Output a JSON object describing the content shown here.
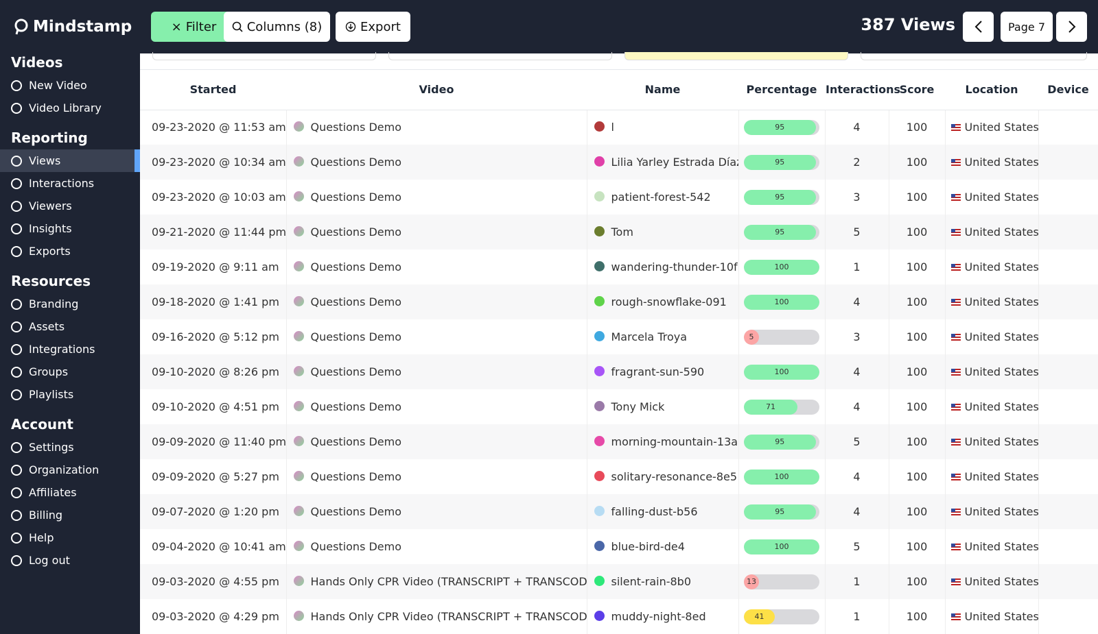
{
  "header": {
    "logo": "Mindstamp",
    "filter": "Filter",
    "columns": "Columns (8)",
    "export": "Export",
    "views_count": "387 Views",
    "page": "Page 7"
  },
  "sidebar": [
    {
      "title": "Videos",
      "items": [
        "New Video",
        "Video Library"
      ]
    },
    {
      "title": "Reporting",
      "items": [
        "Views",
        "Interactions",
        "Viewers",
        "Insights",
        "Exports"
      ]
    },
    {
      "title": "Resources",
      "items": [
        "Branding",
        "Assets",
        "Integrations",
        "Groups",
        "Playlists"
      ]
    },
    {
      "title": "Account",
      "items": [
        "Settings",
        "Organization",
        "Affiliates",
        "Billing",
        "Help",
        "Log out"
      ]
    }
  ],
  "active_item": "Views",
  "table": {
    "columns": [
      "Started",
      "Video",
      "Name",
      "Percentage",
      "Interactions",
      "Score",
      "Location",
      "Device"
    ],
    "rows": [
      {
        "started": "09-23-2020 @ 11:53 am",
        "video": "Questions Demo",
        "name": "l",
        "color": "#b23a3a",
        "percentage": 95,
        "bar_color": "#86efac",
        "interactions": 4,
        "score": 100,
        "location": "United States"
      },
      {
        "started": "09-23-2020 @ 10:34 am",
        "video": "Questions Demo",
        "name": "Lilia Yarley Estrada Díaz",
        "color": "#e040a8",
        "percentage": 95,
        "bar_color": "#86efac",
        "interactions": 2,
        "score": 100,
        "location": "United States"
      },
      {
        "started": "09-23-2020 @ 10:03 am",
        "video": "Questions Demo",
        "name": "patient-forest-542",
        "color": "#c7e3c0",
        "percentage": 95,
        "bar_color": "#86efac",
        "interactions": 3,
        "score": 100,
        "location": "United States"
      },
      {
        "started": "09-21-2020 @ 11:44 pm",
        "video": "Questions Demo",
        "name": "Tom",
        "color": "#6b7d2e",
        "percentage": 95,
        "bar_color": "#86efac",
        "interactions": 5,
        "score": 100,
        "location": "United States"
      },
      {
        "started": "09-19-2020 @ 9:11 am",
        "video": "Questions Demo",
        "name": "wandering-thunder-10f",
        "color": "#3f6f6a",
        "percentage": 100,
        "bar_color": "#86efac",
        "interactions": 1,
        "score": 100,
        "location": "United States"
      },
      {
        "started": "09-18-2020 @ 1:41 pm",
        "video": "Questions Demo",
        "name": "rough-snowflake-091",
        "color": "#5fd34a",
        "percentage": 100,
        "bar_color": "#86efac",
        "interactions": 4,
        "score": 100,
        "location": "United States"
      },
      {
        "started": "09-16-2020 @ 5:12 pm",
        "video": "Questions Demo",
        "name": "Marcela Troya",
        "color": "#3fa9e0",
        "percentage": 5,
        "bar_color": "#fca5a5",
        "interactions": 3,
        "score": 100,
        "location": "United States"
      },
      {
        "started": "09-10-2020 @ 8:26 pm",
        "video": "Questions Demo",
        "name": "fragrant-sun-590",
        "color": "#a855f7",
        "percentage": 100,
        "bar_color": "#86efac",
        "interactions": 4,
        "score": 100,
        "location": "United States"
      },
      {
        "started": "09-10-2020 @ 4:51 pm",
        "video": "Questions Demo",
        "name": "Tony Mick",
        "color": "#9a7aa8",
        "percentage": 71,
        "bar_color": "#86efac",
        "interactions": 4,
        "score": 100,
        "location": "United States"
      },
      {
        "started": "09-09-2020 @ 11:40 pm",
        "video": "Questions Demo",
        "name": "morning-mountain-13a",
        "color": "#e64aa8",
        "percentage": 95,
        "bar_color": "#86efac",
        "interactions": 5,
        "score": 100,
        "location": "United States"
      },
      {
        "started": "09-09-2020 @ 5:27 pm",
        "video": "Questions Demo",
        "name": "solitary-resonance-8e5",
        "color": "#e84a5a",
        "percentage": 100,
        "bar_color": "#86efac",
        "interactions": 4,
        "score": 100,
        "location": "United States"
      },
      {
        "started": "09-07-2020 @ 1:20 pm",
        "video": "Questions Demo",
        "name": "falling-dust-b56",
        "color": "#b7dcf3",
        "percentage": 95,
        "bar_color": "#86efac",
        "interactions": 4,
        "score": 100,
        "location": "United States"
      },
      {
        "started": "09-04-2020 @ 10:41 am",
        "video": "Questions Demo",
        "name": "blue-bird-de4",
        "color": "#4a67a8",
        "percentage": 100,
        "bar_color": "#86efac",
        "interactions": 5,
        "score": 100,
        "location": "United States"
      },
      {
        "started": "09-03-2020 @ 4:55 pm",
        "video": "Hands Only CPR Video (TRANSCRIPT + TRANSCODE)",
        "name": "silent-rain-8b0",
        "color": "#2ee87a",
        "percentage": 13,
        "bar_color": "#fca5a5",
        "interactions": 1,
        "score": 100,
        "location": "United States"
      },
      {
        "started": "09-03-2020 @ 4:29 pm",
        "video": "Hands Only CPR Video (TRANSCRIPT + TRANSCODE)",
        "name": "muddy-night-8ed",
        "color": "#5b3ee8",
        "percentage": 41,
        "bar_color": "#fde047",
        "interactions": 1,
        "score": 100,
        "location": "United States"
      }
    ]
  }
}
